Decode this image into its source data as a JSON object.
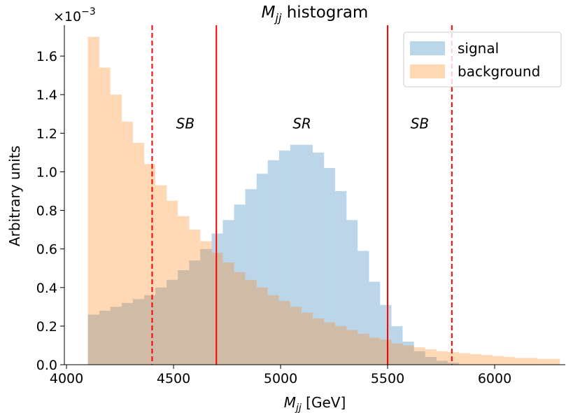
{
  "chart_data": {
    "type": "bar",
    "title_prefix": "M",
    "title_sub": "jj",
    "title_suffix": " histogram",
    "xlabel_prefix": "M",
    "xlabel_sub": "jj",
    "xlabel_suffix": " [GeV]",
    "ylabel": "Arbitrary units",
    "y_multiplier_base": "×10",
    "y_multiplier_exp": "−3",
    "xlim": [
      3990,
      6330
    ],
    "ylim": [
      0,
      1.76
    ],
    "x_ticks": [
      4000,
      4500,
      5000,
      5500,
      6000
    ],
    "y_ticks": [
      0.0,
      0.2,
      0.4,
      0.6,
      0.8,
      1.0,
      1.2,
      1.4,
      1.6
    ],
    "y_tick_labels": [
      "0.0",
      "0.2",
      "0.4",
      "0.6",
      "0.8",
      "1.0",
      "1.2",
      "1.4",
      "1.6"
    ],
    "bin_edges": [
      4100,
      4153,
      4205,
      4258,
      4310,
      4363,
      4415,
      4468,
      4520,
      4573,
      4625,
      4678,
      4730,
      4783,
      4835,
      4888,
      4940,
      4993,
      5045,
      5098,
      5150,
      5203,
      5255,
      5308,
      5360,
      5413,
      5465,
      5518,
      5570,
      5623,
      5675,
      5728,
      5780,
      5833,
      5885,
      5938,
      5990,
      6043,
      6095,
      6148,
      6200,
      6253,
      6305
    ],
    "series": [
      {
        "name": "signal",
        "color": "#1f77b4",
        "opacity": 0.3,
        "values": [
          0.26,
          0.28,
          0.3,
          0.32,
          0.34,
          0.36,
          0.4,
          0.44,
          0.49,
          0.54,
          0.6,
          0.68,
          0.75,
          0.83,
          0.91,
          0.99,
          1.06,
          1.11,
          1.14,
          1.14,
          1.1,
          1.02,
          0.9,
          0.75,
          0.59,
          0.43,
          0.31,
          0.2,
          0.12,
          0.07,
          0.04,
          0.02,
          0.01,
          0.0,
          0.0,
          0.0,
          0.0,
          0.0,
          0.0,
          0.0,
          0.0,
          0.0
        ]
      },
      {
        "name": "background",
        "color": "#ff7f0e",
        "opacity": 0.3,
        "values": [
          1.7,
          1.54,
          1.4,
          1.26,
          1.15,
          1.04,
          0.93,
          0.85,
          0.77,
          0.7,
          0.64,
          0.58,
          0.53,
          0.48,
          0.44,
          0.4,
          0.36,
          0.33,
          0.3,
          0.27,
          0.24,
          0.22,
          0.2,
          0.18,
          0.16,
          0.14,
          0.13,
          0.11,
          0.1,
          0.09,
          0.08,
          0.07,
          0.065,
          0.06,
          0.055,
          0.05,
          0.045,
          0.04,
          0.035,
          0.035,
          0.03,
          0.03
        ]
      }
    ],
    "vlines": [
      {
        "x": 4400,
        "style": "dashed",
        "color": "#ff0000"
      },
      {
        "x": 4700,
        "style": "solid",
        "color": "#ff0000"
      },
      {
        "x": 5500,
        "style": "solid",
        "color": "#ff0000"
      },
      {
        "x": 5800,
        "style": "dashed",
        "color": "#ff0000"
      }
    ],
    "annotations": [
      {
        "text": "SB",
        "x": 4555,
        "y": 1.25
      },
      {
        "text": "SR",
        "x": 5100,
        "y": 1.25
      },
      {
        "text": "SB",
        "x": 5650,
        "y": 1.25
      }
    ],
    "legend_placement": "top-right",
    "grid": false
  }
}
